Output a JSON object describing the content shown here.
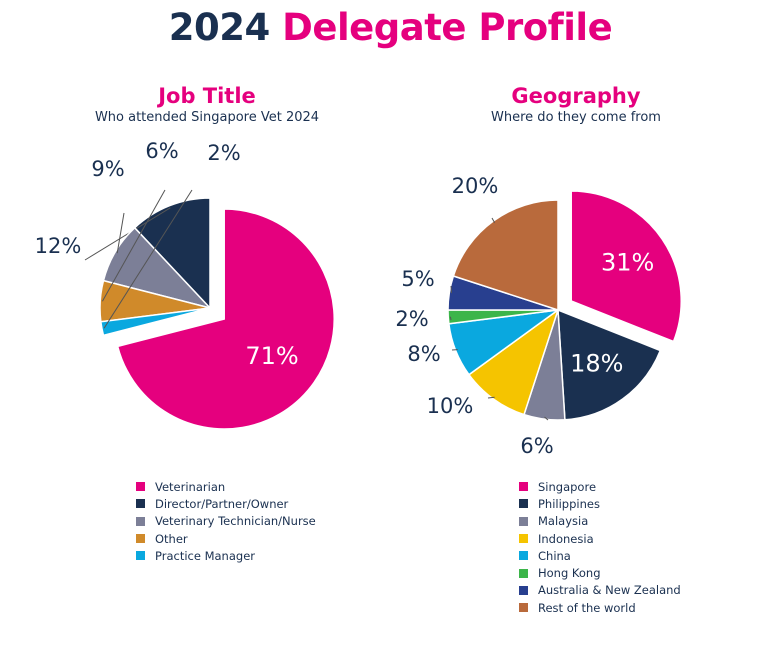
{
  "header": {
    "title_year": "2024",
    "title_main": "Delegate Profile"
  },
  "chart_data": [
    {
      "type": "pie",
      "title": "Job Title",
      "subtitle": "Who attended Singapore Vet 2024",
      "categories": [
        "Veterinarian",
        "Director/Partner/Owner",
        "Veterinary Technician/Nurse",
        "Other",
        "Practice Manager"
      ],
      "values": [
        71,
        12,
        9,
        6,
        2
      ],
      "labels": [
        "71%",
        "12%",
        "9%",
        "6%",
        "2%"
      ],
      "colors": [
        "#e5007e",
        "#1a3050",
        "#7c7f97",
        "#d08a2a",
        "#0aa8df"
      ],
      "exploded": "Veterinarian",
      "legend": "bottom"
    },
    {
      "type": "pie",
      "title": "Geography",
      "subtitle": "Where do they come from",
      "categories": [
        "Singapore",
        "Philippines",
        "Malaysia",
        "Indonesia",
        "China",
        "Hong Kong",
        "Australia & New Zealand",
        "Rest of the world"
      ],
      "values": [
        31,
        18,
        6,
        10,
        8,
        2,
        5,
        20
      ],
      "labels": [
        "31%",
        "18%",
        "6%",
        "10%",
        "8%",
        "2%",
        "5%",
        "20%"
      ],
      "colors": [
        "#e5007e",
        "#1a3050",
        "#7c7f97",
        "#f5c400",
        "#0aa8df",
        "#3cb54a",
        "#283f8f",
        "#b96a3c"
      ],
      "exploded": "Singapore",
      "legend": "bottom"
    }
  ]
}
